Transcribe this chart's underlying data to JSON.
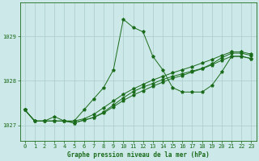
{
  "title": "Graphe pression niveau de la mer (hPa)",
  "bg_color": "#cce8e8",
  "grid_color": "#aacccc",
  "line_color": "#1a6b1a",
  "xlim": [
    -0.5,
    23.5
  ],
  "ylim": [
    1026.65,
    1029.75
  ],
  "yticks": [
    1027,
    1028,
    1029
  ],
  "xticks": [
    0,
    1,
    2,
    3,
    4,
    5,
    6,
    7,
    8,
    9,
    10,
    11,
    12,
    13,
    14,
    15,
    16,
    17,
    18,
    19,
    20,
    21,
    22,
    23
  ],
  "series1": [
    1027.35,
    1027.1,
    1027.1,
    1027.2,
    1027.1,
    1027.1,
    1027.35,
    1027.6,
    1027.85,
    1028.25,
    1029.38,
    1029.2,
    1029.1,
    1028.55,
    1028.25,
    1027.85,
    1027.75,
    1027.75,
    1027.75,
    1027.9,
    1028.2,
    1028.55,
    1028.55,
    1028.5
  ],
  "series2": [
    1027.35,
    1027.1,
    1027.1,
    1027.1,
    1027.1,
    1027.1,
    1027.15,
    1027.25,
    1027.4,
    1027.55,
    1027.7,
    1027.82,
    1027.92,
    1028.02,
    1028.1,
    1028.18,
    1028.25,
    1028.32,
    1028.4,
    1028.48,
    1028.57,
    1028.65,
    1028.65,
    1028.6
  ],
  "series3": [
    1027.35,
    1027.1,
    1027.1,
    1027.1,
    1027.1,
    1027.06,
    1027.12,
    1027.18,
    1027.28,
    1027.42,
    1027.56,
    1027.68,
    1027.78,
    1027.88,
    1027.97,
    1028.06,
    1028.12,
    1028.2,
    1028.27,
    1028.36,
    1028.46,
    1028.55,
    1028.55,
    1028.5
  ],
  "series4": [
    1027.35,
    1027.1,
    1027.1,
    1027.1,
    1027.1,
    1027.06,
    1027.12,
    1027.18,
    1027.3,
    1027.46,
    1027.62,
    1027.76,
    1027.86,
    1027.94,
    1028.03,
    1028.1,
    1028.16,
    1028.22,
    1028.28,
    1028.38,
    1028.52,
    1028.62,
    1028.62,
    1028.57
  ],
  "lw": 0.7,
  "ms": 2.8
}
